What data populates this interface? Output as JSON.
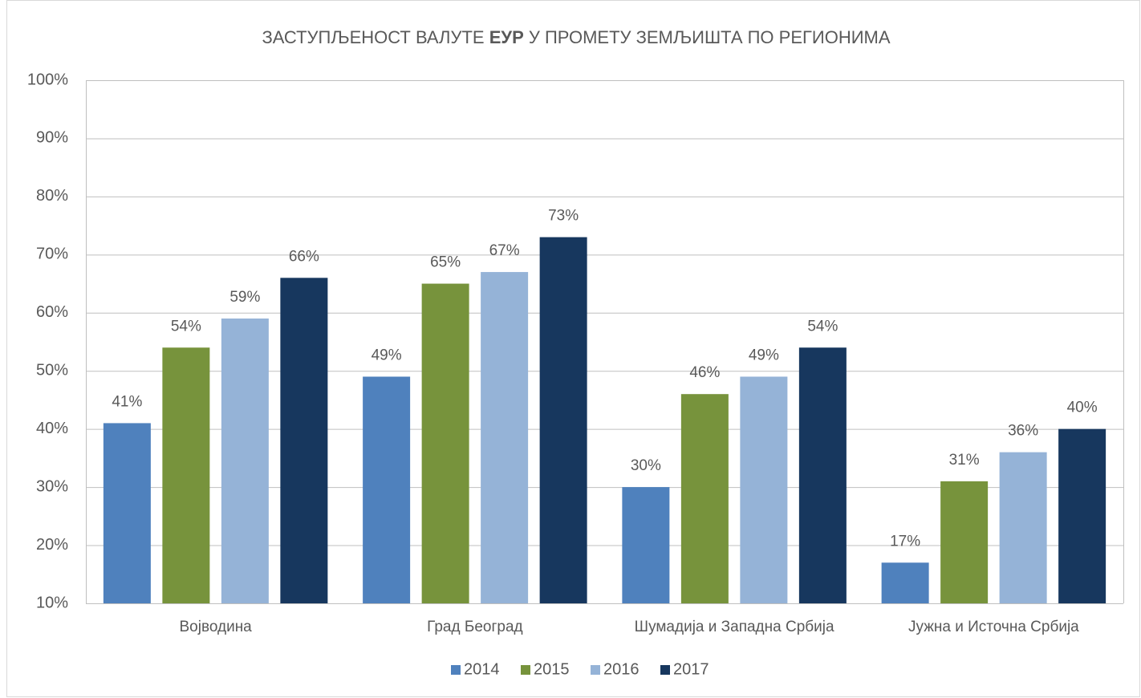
{
  "chart_data": {
    "type": "bar",
    "title": [
      "ЗАСТУПЉЕНОСТ ВАЛУТЕ ",
      "ЕУР",
      " У ПРОМЕТУ ЗЕМЉИШТА ПО РЕГИОНИМА"
    ],
    "categories": [
      "Војводина",
      "Град Београд",
      "Шумадија и Западна Србија",
      "Јужна и Источна Србија"
    ],
    "series": [
      {
        "name": "2014",
        "color": "#4f81bd",
        "values": [
          41,
          49,
          30,
          17
        ],
        "value_labels": [
          "41%",
          "49%",
          "30%",
          "17%"
        ]
      },
      {
        "name": "2015",
        "color": "#77933c",
        "values": [
          54,
          65,
          46,
          31
        ],
        "value_labels": [
          "54%",
          "65%",
          "46%",
          "31%"
        ]
      },
      {
        "name": "2016",
        "color": "#95b3d7",
        "values": [
          59,
          67,
          49,
          36
        ],
        "value_labels": [
          "59%",
          "67%",
          "49%",
          "36%"
        ]
      },
      {
        "name": "2017",
        "color": "#17375e",
        "values": [
          66,
          73,
          54,
          40
        ],
        "value_labels": [
          "66%",
          "73%",
          "54%",
          "40%"
        ]
      }
    ],
    "ylim": [
      10,
      100
    ],
    "yticks": [
      {
        "value": 10,
        "label": "10%"
      },
      {
        "value": 20,
        "label": "20%"
      },
      {
        "value": 30,
        "label": "30%"
      },
      {
        "value": 40,
        "label": "40%"
      },
      {
        "value": 50,
        "label": "50%"
      },
      {
        "value": 60,
        "label": "60%"
      },
      {
        "value": 70,
        "label": "70%"
      },
      {
        "value": 80,
        "label": "80%"
      },
      {
        "value": 90,
        "label": "90%"
      },
      {
        "value": 100,
        "label": "100%"
      }
    ],
    "grid": true,
    "legend": "bottom"
  }
}
